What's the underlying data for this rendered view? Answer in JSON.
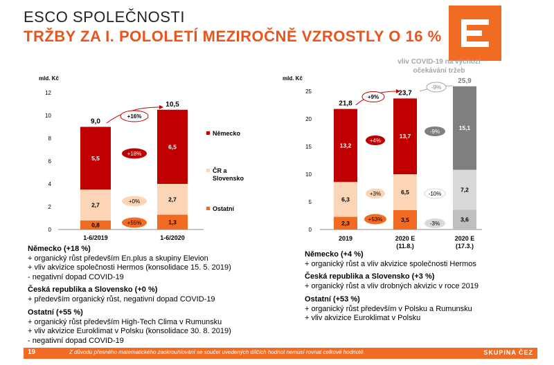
{
  "header": {
    "title": "ESCO SPOLEČNOSTI",
    "subtitle": "TRŽBY ZA I. POLOLETÍ MEZIROČNĚ VZROSTLY O 16 %"
  },
  "logo": {
    "name": "cez-logo"
  },
  "colors": {
    "dark_red": "#c00000",
    "peach": "#fbd5b5",
    "orange": "#f26b22",
    "dark_grey": "#7f7f7f",
    "light_grey": "#d9d9d9",
    "mid_grey": "#bfbfbf"
  },
  "chart_data": [
    {
      "type": "bar",
      "stacked": true,
      "unit_label": "mld. Kč",
      "ylim": [
        0,
        12
      ],
      "yticks": [
        0,
        2,
        4,
        6,
        8,
        10,
        12
      ],
      "categories": [
        "1-6/2019",
        "1-6/2020"
      ],
      "series": [
        {
          "name": "Ostatní",
          "values": [
            0.8,
            1.3
          ],
          "labels": [
            "0,8",
            "1,3"
          ]
        },
        {
          "name": "ČR a Slovensko",
          "values": [
            2.7,
            2.7
          ],
          "labels": [
            "2,7",
            "2,7"
          ]
        },
        {
          "name": "Německo",
          "values": [
            5.5,
            6.5
          ],
          "labels": [
            "5,5",
            "6,5"
          ]
        }
      ],
      "totals": [
        "9,0",
        "10,5"
      ],
      "total_change": "+16%",
      "series_changes": [
        "+55%",
        "+0%",
        "+18%"
      ],
      "legend": [
        "Německo",
        "ČR a Slovensko",
        "Ostatní"
      ]
    },
    {
      "type": "bar",
      "stacked": true,
      "unit_label": "mld. Kč",
      "ylim": [
        0,
        25
      ],
      "yticks": [
        0,
        5,
        10,
        15,
        20,
        25
      ],
      "categories": [
        "2019",
        "2020 E (11.8.)",
        "2020 E (17.3.)"
      ],
      "series": [
        {
          "name": "Ostatní",
          "values": [
            2.3,
            3.5,
            3.6
          ],
          "labels": [
            "2,3",
            "3,5",
            "3,6"
          ]
        },
        {
          "name": "ČR a Slovensko",
          "values": [
            6.3,
            6.5,
            7.2
          ],
          "labels": [
            "6,3",
            "6,5",
            "7,2"
          ]
        },
        {
          "name": "Německo",
          "values": [
            13.2,
            13.7,
            15.1
          ],
          "labels": [
            "13,2",
            "13,7",
            "15,1"
          ]
        }
      ],
      "totals": [
        "21,8",
        "23,7",
        "25,9"
      ],
      "total_change": "+9%",
      "series_changes": [
        "+53%",
        "+3%",
        "+4%"
      ],
      "covid_changes": [
        "-3%",
        "-10%",
        "-9%"
      ],
      "covid_total_change": "-9%",
      "covid_note": "vliv COVID-19 na výchozí očekávání tržeb"
    }
  ],
  "chart_text": {
    "left_cats": [
      "1-6/2019",
      "1-6/2020"
    ],
    "right_cats": [
      "2019",
      "2020 E",
      "2020 E"
    ],
    "right_cats_sub": [
      "",
      "(11.8.)",
      "(17.3.)"
    ],
    "legend_germany": "Německo",
    "legend_czsk_1": "ČR a",
    "legend_czsk_2": "Slovensko",
    "legend_other": "Ostatní",
    "covid_note_1": "vliv COVID-19 na výchozí",
    "covid_note_2": "očekávání tržeb"
  },
  "left_text": {
    "germany_head": "Německo (+18 %)",
    "germany_lines": [
      "+ organický růst především En.plus a skupiny Elevion",
      "+ vliv akvizice společnosti Hermos (konsolidace 15. 5. 2019)",
      "- negativní dopad COVID-19"
    ],
    "czsk_head": "Česká republika a Slovensko (+0 %)",
    "czsk_lines": [
      "+ především organický růst, negativní dopad COVID-19"
    ],
    "other_head": "Ostatní (+55 %)",
    "other_lines": [
      "+ organický růst především High-Tech Clima v Rumunsku",
      "+ vliv akvizice Euroklimat v Polsku (konsolidace 30. 8. 2019)",
      "- negativní dopad COVID-19"
    ]
  },
  "right_text": {
    "germany_head": "Německo (+4 %)",
    "germany_lines": [
      "+ organický růst a vliv akvizice společnosti Hermos"
    ],
    "czsk_head": "Česká republika a Slovensko (+3 %)",
    "czsk_lines": [
      "+ organický růst a vliv drobných akvizic v roce 2019"
    ],
    "other_head": "Ostatní (+53 %)",
    "other_lines": [
      "+ organický růst především v Polsku a Rumunsku",
      "+ vliv akvizice Euroklimat v Polsku"
    ]
  },
  "footer": {
    "page": "19",
    "note": "Z důvodu přesného matematického zaokrouhlování se součet uvedených dílčích hodnot nemusí rovnat celkové hodnotě.",
    "brand": "SKUPINA ČEZ"
  }
}
